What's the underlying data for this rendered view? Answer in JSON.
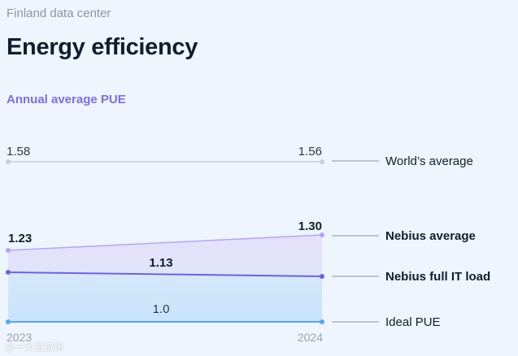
{
  "header": {
    "eyebrow": "Finland data center",
    "title": "Energy efficiency",
    "subtitle": "Annual average PUE"
  },
  "chart_data": {
    "type": "line",
    "title": "Annual average PUE",
    "x": [
      "2023",
      "2024"
    ],
    "series": [
      {
        "name": "World's average",
        "legend": "World’s average",
        "values": [
          1.58,
          1.56
        ],
        "labels": [
          "1.58",
          "1.56"
        ],
        "color": "#c9cfd8",
        "bold": false
      },
      {
        "name": "Nebius average",
        "legend": "Nebius average",
        "values": [
          1.23,
          1.3
        ],
        "labels": [
          "1.23",
          "1.30"
        ],
        "color": "#b3a6f1",
        "bold": true
      },
      {
        "name": "Nebius full IT load",
        "legend": "Nebius full IT load",
        "values": [
          1.13,
          1.13
        ],
        "labels": [
          "1.13"
        ],
        "color": "#6f63d9",
        "bold": true
      },
      {
        "name": "Ideal PUE",
        "legend": "Ideal PUE",
        "values": [
          1.0,
          1.0
        ],
        "labels": [
          "1.0"
        ],
        "color": "#5aa6ee",
        "bold": false
      }
    ]
  },
  "watermark": "@一大鼠资讯"
}
